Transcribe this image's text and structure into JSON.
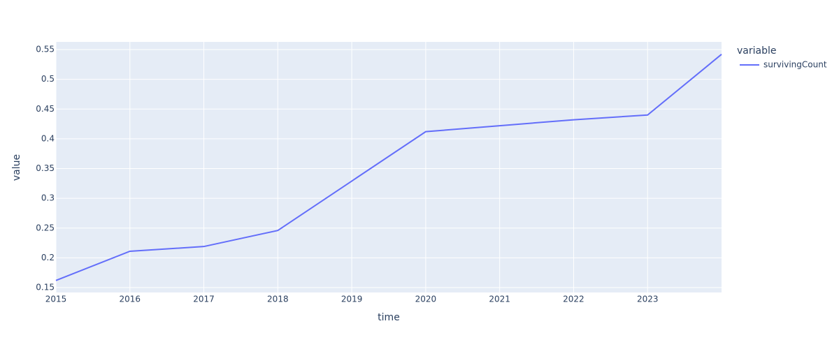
{
  "chart_data": {
    "type": "line",
    "x_label": "time",
    "y_label": "value",
    "legend_title": "variable",
    "x": [
      2015,
      2016,
      2017,
      2018,
      2019,
      2020,
      2021,
      2022,
      2023,
      2024
    ],
    "series": [
      {
        "name": "survivingCount",
        "color": "#636efa",
        "values": [
          0.162,
          0.211,
          0.219,
          0.246,
          0.329,
          0.412,
          0.422,
          0.432,
          0.44,
          0.542
        ]
      }
    ],
    "xlim": [
      2015,
      2024
    ],
    "xticks": [
      2015,
      2016,
      2017,
      2018,
      2019,
      2020,
      2021,
      2022,
      2023
    ],
    "ylim": [
      0.1418,
      0.5629
    ],
    "yticks": [
      0.15,
      0.2,
      0.25,
      0.3,
      0.35,
      0.4,
      0.45,
      0.5,
      0.55
    ],
    "grid": true
  }
}
